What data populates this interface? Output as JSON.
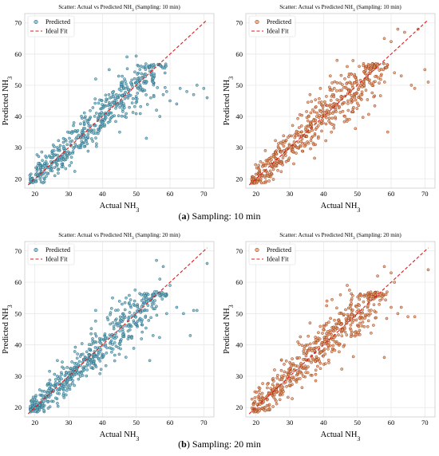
{
  "figure": {
    "captions": [
      {
        "letter": "a",
        "text": "Sampling: 10 min"
      },
      {
        "letter": "b",
        "text": "Sampling: 20 min"
      }
    ]
  },
  "colors": {
    "blue_fill": "#6fb3c8",
    "blue_edge": "#1f5f73",
    "orange_fill": "#e89a68",
    "orange_edge": "#8a3410",
    "ideal_line": "#e31a1c",
    "grid": "#e6e6e6"
  },
  "chart_data": [
    {
      "type": "scatter",
      "title": "Scatter: Actual vs Predicted NH₃ (Sampling: 10 min)",
      "xlabel": "Actual NH₃",
      "ylabel": "Predicted NH₃",
      "xlim": [
        17,
        73
      ],
      "ylim": [
        17,
        73
      ],
      "xticks": [
        20,
        30,
        40,
        50,
        60,
        70
      ],
      "yticks": [
        20,
        30,
        40,
        50,
        60,
        70
      ],
      "grid": true,
      "legend": "top-left",
      "series": [
        {
          "name": "Predicted",
          "kind": "points",
          "color": "blue",
          "seed": 11,
          "count": 520,
          "outliers": [
            [
              58,
              47
            ],
            [
              60,
              45
            ],
            [
              62,
              44
            ],
            [
              65,
              48
            ],
            [
              67,
              47
            ],
            [
              70,
              49
            ],
            [
              71,
              46
            ],
            [
              68,
              50
            ],
            [
              57,
              40
            ],
            [
              56,
              42
            ],
            [
              55,
              51
            ],
            [
              53,
              33
            ],
            [
              42,
              55
            ],
            [
              38,
              52
            ],
            [
              59,
              48
            ],
            [
              63,
              49
            ]
          ]
        },
        {
          "name": "Ideal Fit",
          "kind": "line",
          "x": [
            18,
            71
          ],
          "y": [
            18,
            71
          ]
        }
      ]
    },
    {
      "type": "scatter",
      "title": "Scatter: Actual vs Predicted NH₃ (Sampling: 10 min)",
      "xlabel": "Actual NH₃",
      "ylabel": "Predicted NH₃",
      "xlim": [
        17,
        73
      ],
      "ylim": [
        17,
        73
      ],
      "xticks": [
        20,
        30,
        40,
        50,
        60,
        70
      ],
      "yticks": [
        20,
        30,
        40,
        50,
        60,
        70
      ],
      "grid": true,
      "legend": "top-left",
      "series": [
        {
          "name": "Predicted",
          "kind": "points",
          "color": "orange",
          "seed": 23,
          "count": 540,
          "outliers": [
            [
              58,
              65
            ],
            [
              60,
              64
            ],
            [
              62,
              68
            ],
            [
              64,
              67
            ],
            [
              68,
              68
            ],
            [
              70,
              55
            ],
            [
              71,
              51
            ],
            [
              67,
              49
            ],
            [
              66,
              50
            ],
            [
              57,
              53
            ],
            [
              59,
              35
            ],
            [
              44,
              58
            ],
            [
              47,
              56
            ],
            [
              42,
              53
            ],
            [
              36,
              47
            ],
            [
              61,
              54
            ],
            [
              63,
              53
            ]
          ]
        },
        {
          "name": "Ideal Fit",
          "kind": "line",
          "x": [
            18,
            71
          ],
          "y": [
            18,
            71
          ]
        }
      ]
    },
    {
      "type": "scatter",
      "title": "Scatter: Actual vs Predicted NH₃ (Sampling: 20 min)",
      "xlabel": "Actual NH₃",
      "ylabel": "Predicted NH₃",
      "xlim": [
        17,
        73
      ],
      "ylim": [
        17,
        73
      ],
      "xticks": [
        20,
        30,
        40,
        50,
        60,
        70
      ],
      "yticks": [
        20,
        30,
        40,
        50,
        60,
        70
      ],
      "grid": true,
      "legend": "top-left",
      "series": [
        {
          "name": "Predicted",
          "kind": "points",
          "color": "blue",
          "seed": 37,
          "count": 540,
          "outliers": [
            [
              56,
              67
            ],
            [
              58,
              65
            ],
            [
              57,
              61
            ],
            [
              60,
              59
            ],
            [
              64,
              50
            ],
            [
              67,
              51
            ],
            [
              68,
              51
            ],
            [
              71,
              66
            ],
            [
              66,
              43
            ],
            [
              55,
              43
            ],
            [
              54,
              35
            ],
            [
              43,
              55
            ],
            [
              47,
              55
            ],
            [
              38,
              51
            ],
            [
              62,
              52
            ],
            [
              59,
              50
            ]
          ]
        },
        {
          "name": "Ideal Fit",
          "kind": "line",
          "x": [
            18,
            71
          ],
          "y": [
            18,
            71
          ]
        }
      ]
    },
    {
      "type": "scatter",
      "title": "Scatter: Actual vs Predicted NH₃ (Sampling: 20 min)",
      "xlabel": "Actual NH₃",
      "ylabel": "Predicted NH₃",
      "xlim": [
        17,
        73
      ],
      "ylim": [
        17,
        73
      ],
      "xticks": [
        20,
        30,
        40,
        50,
        60,
        70
      ],
      "yticks": [
        20,
        30,
        40,
        50,
        60,
        70
      ],
      "grid": true,
      "legend": "top-left",
      "series": [
        {
          "name": "Predicted",
          "kind": "points",
          "color": "orange",
          "seed": 53,
          "count": 540,
          "outliers": [
            [
              56,
              62
            ],
            [
              58,
              65
            ],
            [
              60,
              63
            ],
            [
              61,
              60
            ],
            [
              65,
              49
            ],
            [
              67,
              49
            ],
            [
              71,
              64
            ],
            [
              62,
              50
            ],
            [
              58,
              36
            ],
            [
              45,
              56
            ],
            [
              47,
              59
            ],
            [
              41,
              54
            ],
            [
              36,
              47
            ],
            [
              63,
              52
            ],
            [
              60,
              52
            ]
          ]
        },
        {
          "name": "Ideal Fit",
          "kind": "line",
          "x": [
            18,
            71
          ],
          "y": [
            18,
            71
          ]
        }
      ]
    }
  ]
}
